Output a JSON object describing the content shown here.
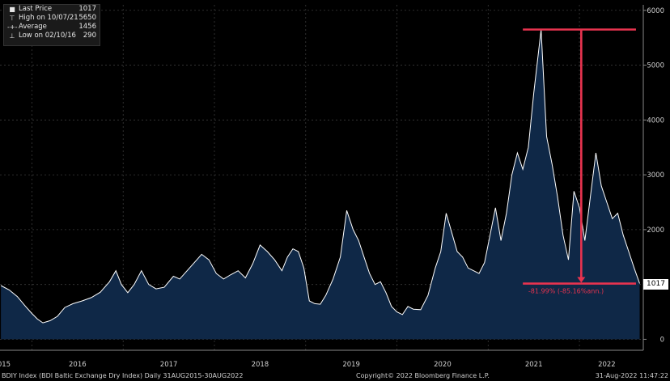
{
  "legend": {
    "items": [
      {
        "label": "Last Price",
        "value": "1017",
        "icon": "white-square-icon"
      },
      {
        "label": "High on 10/07/21",
        "value": "5650",
        "icon": "high-marker-icon"
      },
      {
        "label": "Average",
        "value": "1456",
        "icon": "average-marker-icon"
      },
      {
        "label": "Low on 02/10/16",
        "value": "290",
        "icon": "low-marker-icon"
      }
    ]
  },
  "annotation": {
    "text": "-81.99% (-85.16%ann.)",
    "color": "#e8334f"
  },
  "last_price_tag": "1017",
  "footer": {
    "left": "BDIY Index (BDI Baltic Exchange Dry Index)  Daily 31AUG2015-30AUG2022",
    "center": "Copyright© 2022 Bloomberg Finance L.P.",
    "right": "31-Aug-2022 11:47:22"
  },
  "colors": {
    "background": "#000000",
    "fill": "#0f2847",
    "line": "#ffffff",
    "annotation": "#e8334f"
  },
  "chart_data": {
    "type": "area",
    "title": "",
    "xlabel": "",
    "ylabel": "",
    "ylim": [
      -200,
      6100
    ],
    "xlim": [
      2015.65,
      2022.7
    ],
    "y_ticks": [
      0,
      1000,
      2000,
      3000,
      4000,
      5000,
      6000
    ],
    "x_tick_labels": [
      "2015",
      "2016",
      "2017",
      "2018",
      "2019",
      "2020",
      "2021",
      "2022"
    ],
    "x_tick_positions": [
      2015.67,
      2016.5,
      2017.5,
      2018.5,
      2019.5,
      2020.5,
      2021.5,
      2022.3
    ],
    "grid": true,
    "legend_position": "top-left",
    "series": [
      {
        "x": [
          2015.66,
          2015.75,
          2015.84,
          2015.93,
          2016.0,
          2016.06,
          2016.12,
          2016.2,
          2016.28,
          2016.36,
          2016.45,
          2016.55,
          2016.65,
          2016.75,
          2016.85,
          2016.92,
          2016.98,
          2017.05,
          2017.12,
          2017.2,
          2017.28,
          2017.36,
          2017.45,
          2017.55,
          2017.62,
          2017.7,
          2017.78,
          2017.86,
          2017.94,
          2018.02,
          2018.1,
          2018.18,
          2018.26,
          2018.34,
          2018.42,
          2018.5,
          2018.58,
          2018.66,
          2018.74,
          2018.8,
          2018.86,
          2018.92,
          2018.98,
          2019.04,
          2019.1,
          2019.16,
          2019.22,
          2019.3,
          2019.38,
          2019.45,
          2019.52,
          2019.58,
          2019.64,
          2019.7,
          2019.76,
          2019.82,
          2019.88,
          2019.94,
          2020.0,
          2020.06,
          2020.12,
          2020.18,
          2020.26,
          2020.34,
          2020.42,
          2020.48,
          2020.54,
          2020.6,
          2020.66,
          2020.72,
          2020.78,
          2020.84,
          2020.9,
          2020.96,
          2021.02,
          2021.08,
          2021.14,
          2021.2,
          2021.26,
          2021.32,
          2021.38,
          2021.44,
          2021.5,
          2021.58,
          2021.64,
          2021.7,
          2021.76,
          2021.82,
          2021.88,
          2021.94,
          2022.0,
          2022.06,
          2022.12,
          2022.18,
          2022.24,
          2022.3,
          2022.36,
          2022.42,
          2022.48,
          2022.54,
          2022.6,
          2022.66
        ],
        "y": [
          980,
          900,
          780,
          600,
          470,
          370,
          300,
          340,
          420,
          580,
          650,
          700,
          760,
          860,
          1050,
          1250,
          1000,
          850,
          1000,
          1250,
          1000,
          920,
          950,
          1150,
          1100,
          1250,
          1400,
          1550,
          1450,
          1200,
          1100,
          1180,
          1250,
          1120,
          1380,
          1720,
          1600,
          1450,
          1250,
          1500,
          1650,
          1600,
          1300,
          700,
          650,
          640,
          800,
          1100,
          1500,
          2350,
          2000,
          1800,
          1500,
          1200,
          1000,
          1050,
          850,
          600,
          500,
          450,
          600,
          550,
          540,
          800,
          1300,
          1600,
          2300,
          1950,
          1600,
          1500,
          1300,
          1250,
          1200,
          1400,
          1900,
          2400,
          1800,
          2300,
          3000,
          3400,
          3100,
          3500,
          4500,
          5650,
          3700,
          3200,
          2600,
          1900,
          1450,
          2700,
          2400,
          1800,
          2600,
          3400,
          2800,
          2500,
          2200,
          2300,
          1900,
          1600,
          1300,
          1017
        ]
      }
    ],
    "annotations": [
      {
        "type": "hline",
        "y": 5650,
        "x0": 2021.38,
        "x1": 2022.62
      },
      {
        "type": "hline",
        "y": 1017,
        "x0": 2021.38,
        "x1": 2022.62
      },
      {
        "type": "arrow",
        "x": 2022.02,
        "from_y": 5650,
        "to_y": 1017
      },
      {
        "type": "label",
        "text": "-81.99% (-85.16%ann.)"
      }
    ]
  }
}
